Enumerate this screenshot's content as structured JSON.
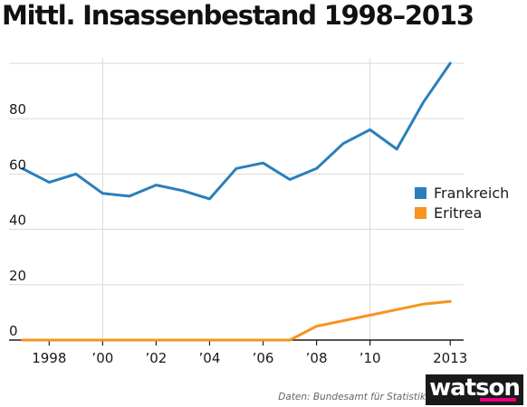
{
  "chart_data": {
    "type": "line",
    "title": "Mittl. Insassenbestand 1998–2013",
    "x": [
      1997,
      1998,
      1999,
      2000,
      2001,
      2002,
      2003,
      2004,
      2005,
      2006,
      2007,
      2008,
      2009,
      2010,
      2011,
      2012,
      2013
    ],
    "x_tick_values": [
      1998,
      2000,
      2002,
      2004,
      2006,
      2008,
      2010,
      2013
    ],
    "x_tick_labels": [
      "1998",
      "’00",
      "’0​2",
      "’04",
      "’06",
      "’08",
      "’10",
      "2013"
    ],
    "y_tick_values": [
      0,
      20,
      40,
      60,
      80
    ],
    "y_tick_labels": [
      "0",
      "20",
      "40",
      "60",
      "80"
    ],
    "ylim": [
      0,
      100
    ],
    "xlim": [
      1996.5,
      2013.5
    ],
    "grid": true,
    "legend_position": "right",
    "series": [
      {
        "name": "Frankreich",
        "color": "#2a7fba",
        "values": [
          62,
          57,
          60,
          53,
          52,
          56,
          54,
          51,
          62,
          64,
          58,
          62,
          71,
          76,
          69,
          86,
          100
        ]
      },
      {
        "name": "Eritrea",
        "color": "#f7931e",
        "values": [
          0,
          0,
          0,
          0,
          0,
          0,
          0,
          0,
          0,
          0,
          0,
          5,
          7,
          9,
          11,
          13,
          14
        ]
      }
    ]
  },
  "footer": {
    "source": "Daten: Bundesamt für Statistik",
    "logo": "watson"
  }
}
